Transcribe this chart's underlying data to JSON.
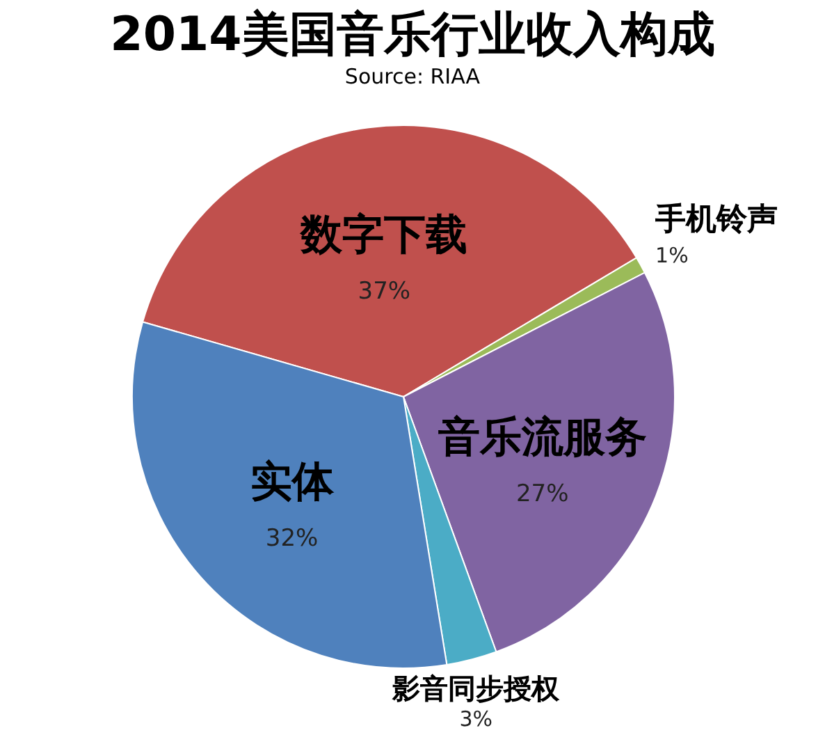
{
  "chart_data": {
    "type": "pie",
    "title": "2014美国音乐行业收入构成",
    "subtitle": "Source: RIAA",
    "categories": [
      "数字下载",
      "手机铃声",
      "音乐流服务",
      "影音同步授权",
      "实体"
    ],
    "values": [
      37,
      1,
      27,
      3,
      32
    ],
    "colors": [
      "#c0504d",
      "#9bbb59",
      "#8064a2",
      "#4bacc6",
      "#4f81bd"
    ],
    "value_labels": [
      "37%",
      "1%",
      "27%",
      "3%",
      "32%"
    ]
  }
}
